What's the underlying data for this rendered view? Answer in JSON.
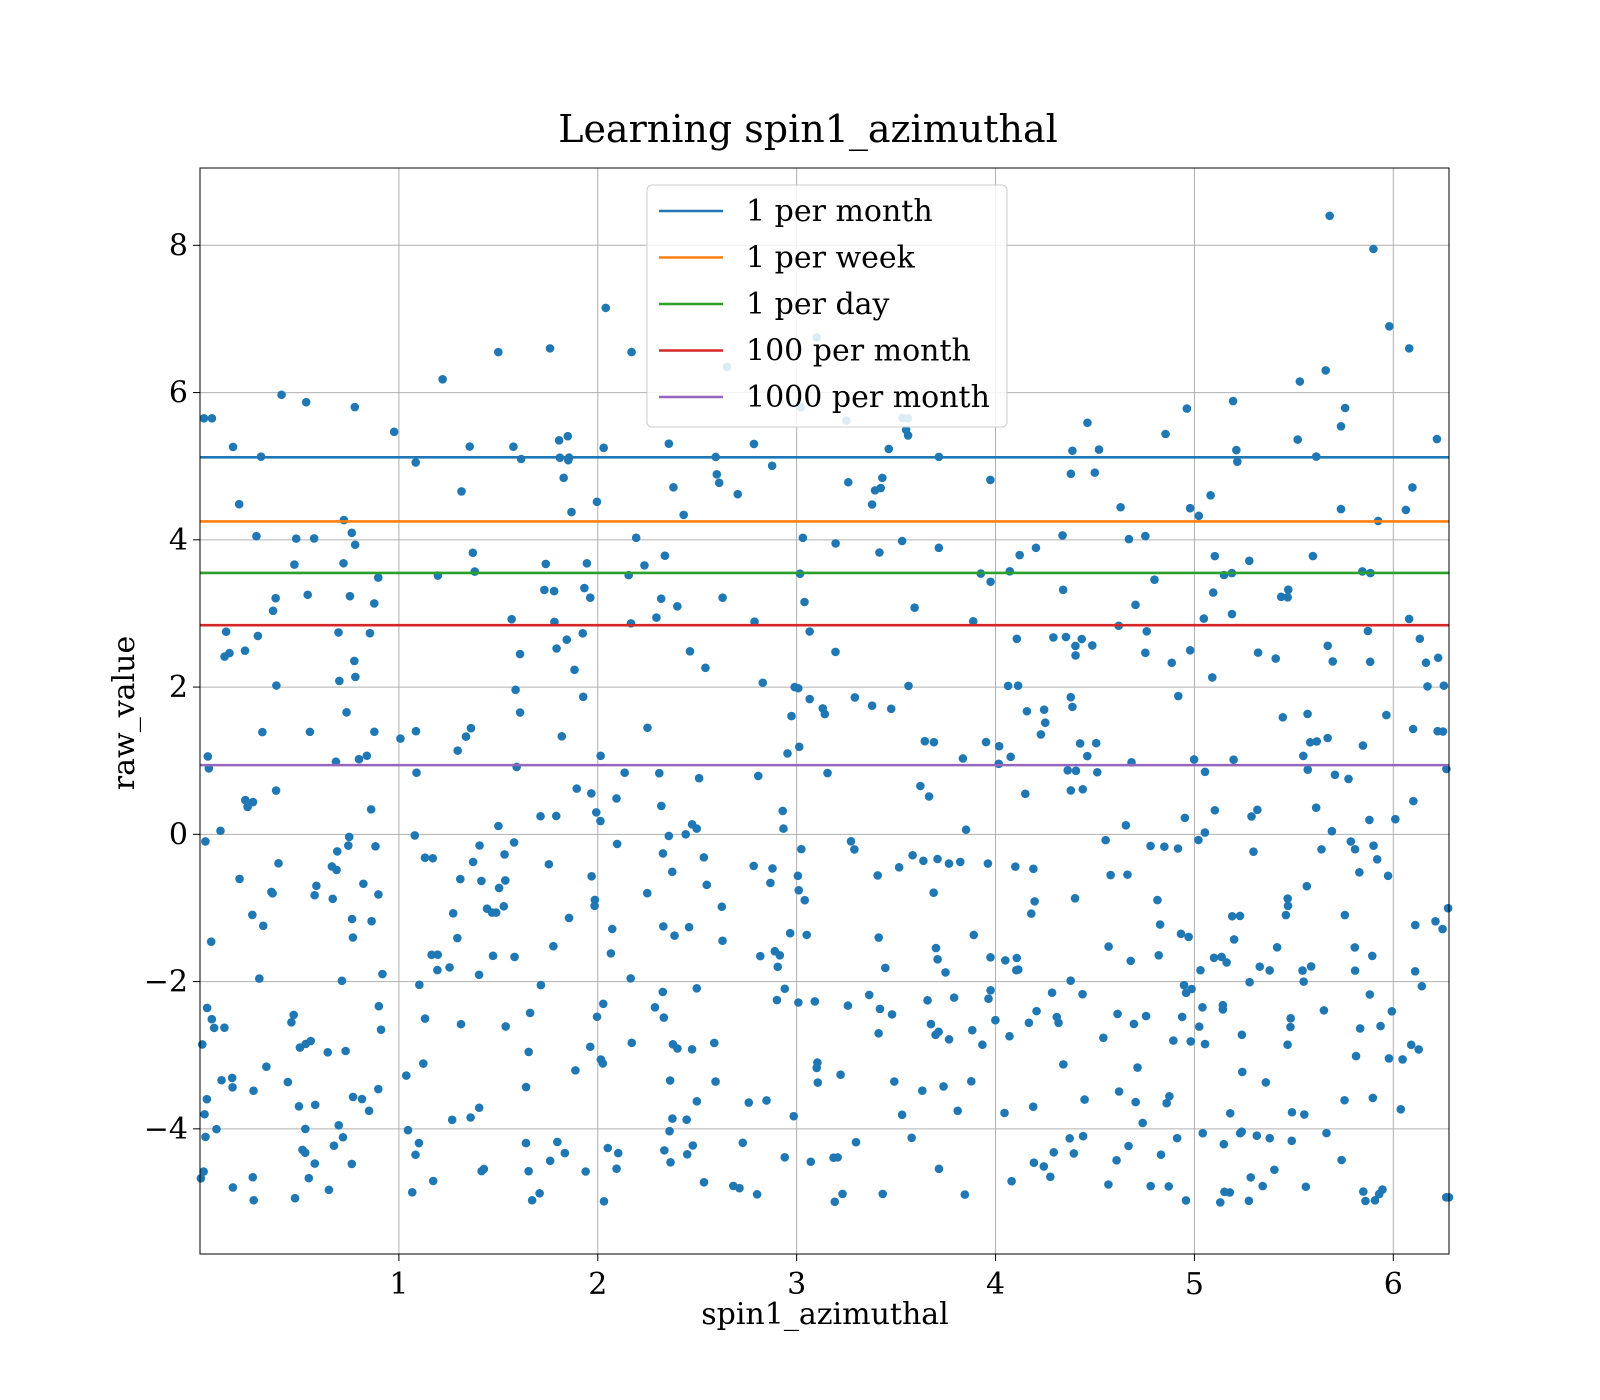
{
  "chart_data": {
    "type": "scatter",
    "title": "Learning spin1_azimuthal",
    "xlabel": "spin1_azimuthal",
    "ylabel": "raw_value",
    "xlim": [
      0,
      6.28
    ],
    "ylim": [
      -5.7,
      9.05
    ],
    "x_ticks": [
      1,
      2,
      3,
      4,
      5,
      6
    ],
    "x_tick_labels": [
      "1",
      "2",
      "3",
      "4",
      "5",
      "6"
    ],
    "y_ticks": [
      -4,
      -2,
      0,
      2,
      4,
      6,
      8
    ],
    "y_tick_labels": [
      "−4",
      "−2",
      "0",
      "2",
      "4",
      "6",
      "8"
    ],
    "grid": true,
    "legend_position": "top-center",
    "scatter_color": "#1f77b4",
    "scatter_point_count": 720,
    "scatter_range": {
      "x": [
        0,
        6.28
      ],
      "y": [
        -5.0,
        8.4
      ]
    },
    "notable_points": [
      {
        "x": 5.68,
        "y": 8.4
      },
      {
        "x": 5.9,
        "y": 7.95
      },
      {
        "x": 2.04,
        "y": 7.15
      },
      {
        "x": 5.98,
        "y": 6.9
      },
      {
        "x": 3.1,
        "y": 6.75
      },
      {
        "x": 6.08,
        "y": 6.6
      },
      {
        "x": 1.76,
        "y": 6.6
      },
      {
        "x": 1.5,
        "y": 6.55
      },
      {
        "x": 2.17,
        "y": 6.55
      },
      {
        "x": 2.65,
        "y": 6.35
      },
      {
        "x": 5.66,
        "y": 6.3
      },
      {
        "x": 1.22,
        "y": 6.18
      },
      {
        "x": 5.53,
        "y": 6.15
      },
      {
        "x": 0.41,
        "y": 5.97
      },
      {
        "x": 0.02,
        "y": 5.65
      },
      {
        "x": 0.06,
        "y": 5.65
      },
      {
        "x": 3.25,
        "y": 5.62
      },
      {
        "x": 5.13,
        "y": -5.0
      },
      {
        "x": 0.27,
        "y": -4.97
      },
      {
        "x": 5.86,
        "y": -4.98
      },
      {
        "x": 1.67,
        "y": -4.97
      },
      {
        "x": 6.28,
        "y": -4.93
      }
    ],
    "reference_lines": [
      {
        "name": "1 per month",
        "y": 5.12,
        "color": "#1f77b4"
      },
      {
        "name": "1 per week",
        "y": 4.25,
        "color": "#ff7f0e"
      },
      {
        "name": "1 per day",
        "y": 3.55,
        "color": "#2ca02c"
      },
      {
        "name": "100 per month",
        "y": 2.84,
        "color": "#d62728"
      },
      {
        "name": "1000 per month",
        "y": 0.94,
        "color": "#9467bd"
      }
    ]
  }
}
